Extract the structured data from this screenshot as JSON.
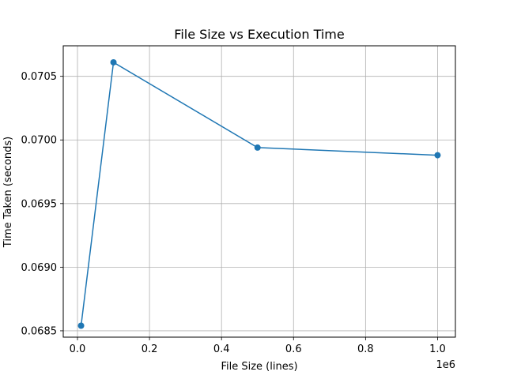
{
  "chart_data": {
    "type": "line",
    "title": "File Size vs Execution Time",
    "xlabel": "File Size (lines)",
    "ylabel": "Time Taken (seconds)",
    "x_offset_label": "1e6",
    "xlim": [
      -0.0395,
      1.0495
    ],
    "ylim": [
      0.06845,
      0.07074
    ],
    "x_ticks": [
      0.0,
      0.2,
      0.4,
      0.6,
      0.8,
      1.0
    ],
    "x_tick_labels": [
      "0.0",
      "0.2",
      "0.4",
      "0.6",
      "0.8",
      "1.0"
    ],
    "y_ticks": [
      0.0685,
      0.069,
      0.0695,
      0.07,
      0.0705
    ],
    "y_tick_labels": [
      "0.0685",
      "0.0690",
      "0.0695",
      "0.0700",
      "0.0705"
    ],
    "grid": true,
    "series": [
      {
        "color": "#1f77b4",
        "x": [
          0.01,
          0.1,
          0.5,
          1.0
        ],
        "y": [
          0.06854,
          0.07061,
          0.06994,
          0.06988
        ]
      }
    ]
  }
}
